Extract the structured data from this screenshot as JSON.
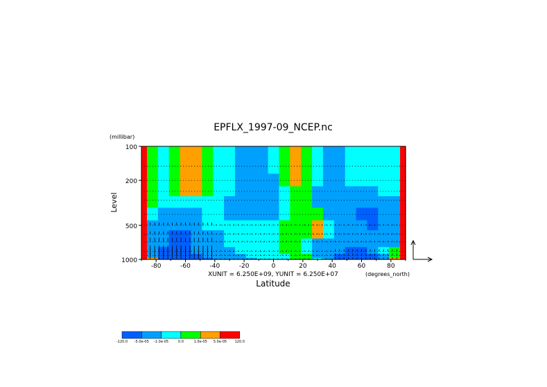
{
  "chart_data": {
    "type": "heatmap",
    "title": "EPFLX_1997-09_NCEP.nc",
    "xlabel": "Latitude",
    "ylabel": "Level",
    "y_unit": "(millibar)",
    "x_unit": "(degrees_north)",
    "vector_scale_text": "XUNIT = 6.250E+09, YUNIT = 6.250E+07",
    "xlim": [
      -90,
      90
    ],
    "ylim": [
      1000,
      100
    ],
    "y_scale": "log",
    "x_ticks": [
      -80,
      -60,
      -40,
      -20,
      0,
      20,
      40,
      60,
      80
    ],
    "y_ticks": [
      100,
      200,
      500,
      1000
    ],
    "pressure_levels": [
      1000,
      925,
      850,
      700,
      600,
      500,
      400,
      300,
      250,
      200,
      150,
      100
    ],
    "legend": {
      "position": "bottom-left",
      "colors": [
        "#0060ff",
        "#00a0ff",
        "#00ffff",
        "#00ff00",
        "#ffa000",
        "#ff0000"
      ],
      "labels": [
        "-120.0",
        "-5.0e-05",
        "-1.0e-05",
        "0.0",
        "1.0e-05",
        "5.0e-05",
        "120.0"
      ]
    },
    "latitudes": [
      -90,
      -82.5,
      -75,
      -67.5,
      -60,
      -52.5,
      -45,
      -37.5,
      -30,
      -22.5,
      -15,
      -7.5,
      0,
      7.5,
      15,
      22.5,
      30,
      37.5,
      45,
      52.5,
      60,
      67.5,
      75,
      82.5,
      90
    ],
    "divergence_class_rows_bottom_to_top": [
      [
        5,
        4,
        0,
        0,
        0,
        0,
        0,
        1,
        1,
        1,
        1,
        2,
        2,
        2,
        3,
        3,
        2,
        1,
        0,
        0,
        0,
        0,
        1,
        4,
        5
      ],
      [
        5,
        1,
        0,
        0,
        0,
        0,
        1,
        1,
        1,
        1,
        2,
        2,
        2,
        2,
        3,
        3,
        1,
        1,
        0,
        0,
        0,
        0,
        1,
        3,
        5
      ],
      [
        5,
        1,
        0,
        0,
        0,
        1,
        1,
        1,
        1,
        2,
        2,
        2,
        2,
        3,
        3,
        2,
        1,
        1,
        1,
        0,
        0,
        1,
        2,
        3,
        5
      ],
      [
        5,
        1,
        1,
        0,
        0,
        1,
        1,
        1,
        2,
        2,
        2,
        2,
        2,
        3,
        3,
        2,
        1,
        1,
        1,
        1,
        1,
        1,
        1,
        1,
        5
      ],
      [
        5,
        1,
        1,
        0,
        0,
        1,
        1,
        1,
        2,
        2,
        2,
        2,
        2,
        3,
        3,
        3,
        4,
        2,
        1,
        1,
        1,
        1,
        1,
        1,
        5
      ],
      [
        5,
        1,
        1,
        1,
        1,
        1,
        2,
        2,
        2,
        2,
        2,
        2,
        2,
        3,
        3,
        3,
        4,
        2,
        1,
        1,
        1,
        0,
        1,
        1,
        5
      ],
      [
        5,
        2,
        1,
        1,
        1,
        1,
        2,
        2,
        1,
        1,
        1,
        1,
        1,
        2,
        3,
        3,
        3,
        1,
        1,
        1,
        0,
        0,
        1,
        1,
        5
      ],
      [
        5,
        3,
        2,
        2,
        2,
        2,
        2,
        2,
        1,
        1,
        1,
        1,
        1,
        2,
        3,
        3,
        1,
        1,
        1,
        1,
        1,
        1,
        1,
        1,
        5
      ],
      [
        5,
        3,
        2,
        3,
        4,
        4,
        3,
        2,
        2,
        1,
        1,
        1,
        1,
        2,
        3,
        3,
        1,
        1,
        1,
        1,
        1,
        1,
        2,
        2,
        5
      ],
      [
        5,
        3,
        2,
        3,
        4,
        4,
        3,
        2,
        2,
        1,
        1,
        1,
        1,
        3,
        4,
        3,
        2,
        1,
        1,
        2,
        2,
        2,
        2,
        2,
        5
      ],
      [
        5,
        3,
        2,
        3,
        4,
        4,
        3,
        2,
        2,
        1,
        1,
        1,
        2,
        3,
        4,
        3,
        2,
        1,
        1,
        2,
        2,
        2,
        2,
        2,
        5
      ],
      [
        5,
        3,
        2,
        3,
        4,
        4,
        3,
        2,
        2,
        1,
        1,
        1,
        2,
        3,
        4,
        3,
        2,
        1,
        1,
        2,
        2,
        2,
        2,
        2,
        5
      ]
    ],
    "vector_arrows": "EP flux arrows, mostly upward, densest poleward of 40S in the lower troposphere (1000-700 mb)"
  }
}
